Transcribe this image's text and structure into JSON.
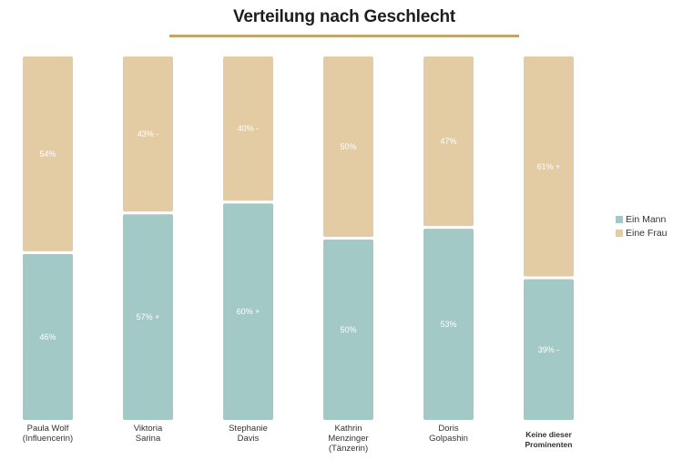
{
  "title": "Verteilung nach Geschlecht",
  "colors": {
    "mann": "#a2c9c5",
    "frau": "#e3cca3",
    "rule": "#c3a46a"
  },
  "chart_data": {
    "type": "bar",
    "stacked": true,
    "title": "Verteilung nach Geschlecht",
    "categories": [
      [
        "Paula Wolf",
        "(Influencerin)"
      ],
      [
        "Viktoria",
        "Sarina"
      ],
      [
        "Stephanie",
        "Davis"
      ],
      [
        "Kathrin",
        "Menzinger",
        "(Tänzerin)"
      ],
      [
        "Doris",
        "Golpashin"
      ],
      [
        "Keine dieser",
        "Prominenten"
      ]
    ],
    "series": [
      {
        "name": "Ein Mann",
        "values": [
          46,
          57,
          60,
          50,
          53,
          39
        ],
        "labels": [
          "46%",
          "57% +",
          "60% +",
          "50%",
          "53%",
          "39% -"
        ]
      },
      {
        "name": "Eine Frau",
        "values": [
          54,
          43,
          40,
          50,
          47,
          61
        ],
        "labels": [
          "54%",
          "43% -",
          "40% -",
          "50%",
          "47%",
          "61% +"
        ]
      }
    ],
    "ylim": [
      0,
      100
    ],
    "legend_position": "right"
  }
}
